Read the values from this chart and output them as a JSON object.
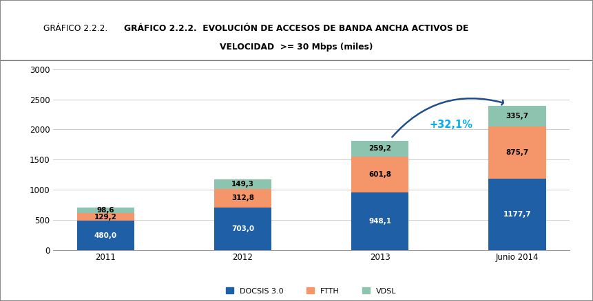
{
  "categories": [
    "2011",
    "2012",
    "2013",
    "Junio 2014"
  ],
  "docsis": [
    480.0,
    703.0,
    948.1,
    1177.7
  ],
  "ftth": [
    129.2,
    312.8,
    601.8,
    875.7
  ],
  "vdsl": [
    98.6,
    149.3,
    259.2,
    335.7
  ],
  "docsis_color": "#1f5fa6",
  "ftth_color": "#f4956a",
  "vdsl_color": "#8dc4b0",
  "arrow_color": "#1f4e8c",
  "ylim": [
    0,
    3000
  ],
  "yticks": [
    0,
    500,
    1000,
    1500,
    2000,
    2500,
    3000
  ],
  "annotation_text": "+32,1%",
  "annotation_color": "#00aeef",
  "bg_color": "#ffffff",
  "legend_labels": [
    "DOCSIS 3.0",
    "FTTH",
    "VDSL"
  ],
  "title_line1": "GRÁFICO 2.2.2.  EVOLUCIÓN DE ACCESOS DE BANDA ANCHA ACTIVOS DE",
  "title_line2": "VELOCIDAD  >= 30 Mbps (miles)"
}
